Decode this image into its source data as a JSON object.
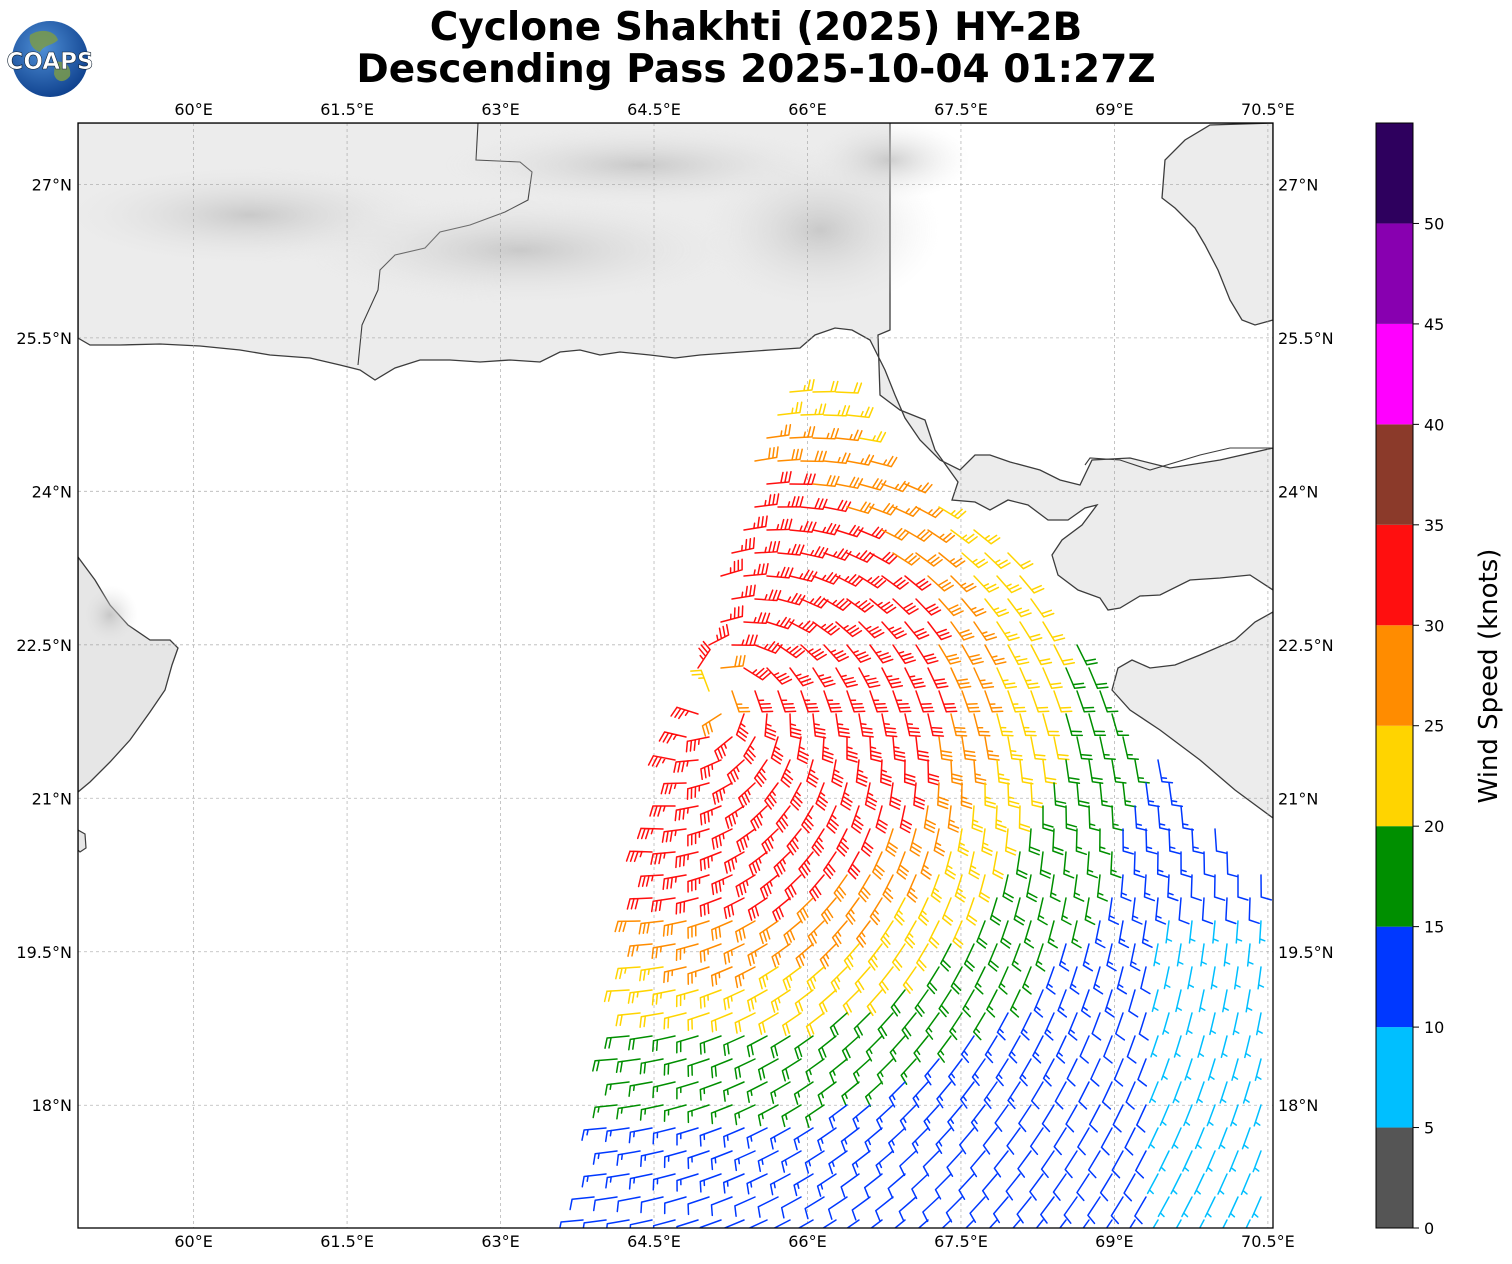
{
  "title": "Cyclone Shakhti (2025) HY-2B",
  "subtitle": "Descending Pass 2025-10-04 01:27Z",
  "logo_text": "COAPS",
  "chart_data": {
    "type": "wind-barb map",
    "x_ticks": [
      "60°E",
      "61.5°E",
      "63°E",
      "64.5°E",
      "66°E",
      "67.5°E",
      "69°E",
      "70.5°E"
    ],
    "x_tick_values": [
      60,
      61.5,
      63,
      64.5,
      66,
      67.5,
      69,
      70.5
    ],
    "y_ticks": [
      "27°N",
      "25.5°N",
      "24°N",
      "22.5°N",
      "21°N",
      "19.5°N",
      "18°N"
    ],
    "y_tick_values": [
      27,
      25.5,
      24,
      22.5,
      21,
      19.5,
      18
    ],
    "xlim": [
      58.87,
      70.55
    ],
    "ylim": [
      16.8,
      27.6
    ],
    "grid": true,
    "storm_center": {
      "lon": 65.1,
      "lat": 22.05
    },
    "colorbar": {
      "label": "Wind Speed (knots)",
      "ticks": [
        "0",
        "5",
        "10",
        "15",
        "20",
        "25",
        "30",
        "35",
        "40",
        "45",
        "50"
      ],
      "tick_values": [
        0,
        5,
        10,
        15,
        20,
        25,
        30,
        35,
        40,
        45,
        50
      ],
      "max": 55,
      "bins": [
        {
          "from": 0,
          "to": 5,
          "color": "#555555"
        },
        {
          "from": 5,
          "to": 10,
          "color": "#00bfff"
        },
        {
          "from": 10,
          "to": 15,
          "color": "#0038ff"
        },
        {
          "from": 15,
          "to": 20,
          "color": "#008f00"
        },
        {
          "from": 20,
          "to": 25,
          "color": "#ffd400"
        },
        {
          "from": 25,
          "to": 30,
          "color": "#ff8c00"
        },
        {
          "from": 30,
          "to": 35,
          "color": "#ff0f0f"
        },
        {
          "from": 35,
          "to": 40,
          "color": "#8b3a2a"
        },
        {
          "from": 40,
          "to": 45,
          "color": "#ff00ff"
        },
        {
          "from": 45,
          "to": 50,
          "color": "#8800b0"
        },
        {
          "from": 50,
          "to": 55,
          "color": "#2e005e"
        }
      ]
    }
  }
}
